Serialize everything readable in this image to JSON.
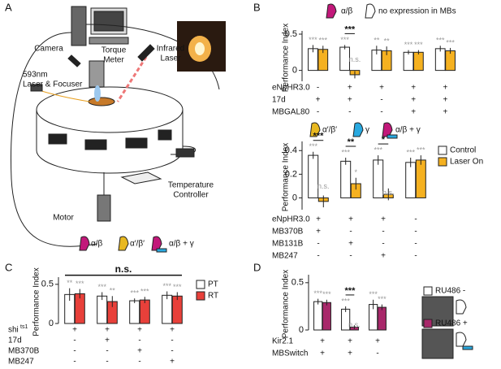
{
  "panels": [
    "A",
    "B",
    "C",
    "D"
  ],
  "diagram": {
    "labels": [
      {
        "lines": [
          "Camera"
        ]
      },
      {
        "lines": [
          "Torque",
          "Meter"
        ]
      },
      {
        "lines": [
          "Infrared",
          "Laser"
        ]
      },
      {
        "lines": [
          "593nm",
          "Laser & Focuser"
        ]
      },
      {
        "lines": [
          "Motor"
        ]
      },
      {
        "lines": [
          "Temperature",
          "Controller"
        ]
      }
    ]
  },
  "chart_data": [
    {
      "type": "bar",
      "ylabel": "Performance Index",
      "ylim": [
        -0.15,
        0.5
      ],
      "yticks": [
        0,
        0.5
      ],
      "series": [
        {
          "color": "#ffffff",
          "values": [
            0.3,
            0.32,
            0.28,
            0.25,
            0.3
          ],
          "errors": [
            0.05,
            0.03,
            0.06,
            0.03,
            0.04
          ],
          "stars": [
            "***",
            "***",
            "**",
            "***",
            "***"
          ]
        },
        {
          "color": "#f5b120",
          "values": [
            0.29,
            -0.06,
            0.27,
            0.25,
            0.27
          ],
          "errors": [
            0.05,
            0.05,
            0.06,
            0.03,
            0.04
          ],
          "stars": [
            "***",
            "n.s.",
            "**",
            "***",
            "***"
          ]
        }
      ],
      "comparisons": [
        {
          "group": 1,
          "label": "***"
        }
      ],
      "conditions": [
        {
          "label": "eNpHR3.0",
          "marks": [
            "-",
            "+",
            "+",
            "+",
            "+"
          ]
        },
        {
          "label": "17d",
          "marks": [
            "+",
            "+",
            "-",
            "+",
            "+"
          ]
        },
        {
          "label": "MBGAL80",
          "marks": [
            "-",
            "-",
            "-",
            "+",
            "+"
          ]
        }
      ],
      "icons": [
        "α/β",
        "no expression in MBs"
      ]
    },
    {
      "type": "bar",
      "ylabel": "Performance Index",
      "ylim": [
        -0.1,
        0.45
      ],
      "yticks": [
        0,
        0.2,
        0.4
      ],
      "series": [
        {
          "name": "Control",
          "color": "#ffffff",
          "values": [
            0.36,
            0.31,
            0.32,
            0.3
          ],
          "errors": [
            0.03,
            0.03,
            0.04,
            0.04
          ],
          "stars": [
            "***",
            "***",
            "***",
            "***"
          ]
        },
        {
          "name": "Laser On",
          "color": "#f5b120",
          "values": [
            -0.03,
            0.12,
            0.03,
            0.32
          ],
          "errors": [
            0.05,
            0.05,
            0.05,
            0.04
          ],
          "stars": [
            "n.s.",
            "*",
            "n.s.",
            "***"
          ]
        }
      ],
      "comparisons": [
        {
          "group": 0,
          "label": "***"
        },
        {
          "group": 1,
          "label": "**"
        },
        {
          "group": 2,
          "label": "*"
        }
      ],
      "conditions": [
        {
          "label": "eNpHR3.0",
          "marks": [
            "+",
            "+",
            "+",
            "-"
          ]
        },
        {
          "label": "MB370B",
          "marks": [
            "+",
            "-",
            "-",
            "-"
          ]
        },
        {
          "label": "MB131B",
          "marks": [
            "-",
            "+",
            "-",
            "-"
          ]
        },
        {
          "label": "MB247",
          "marks": [
            "-",
            "-",
            "+",
            "-"
          ]
        }
      ],
      "icons": [
        "α′/β′",
        "γ",
        "α/β + γ"
      ]
    },
    {
      "type": "bar",
      "ylabel": "Performance Index",
      "ylim": [
        0,
        0.55
      ],
      "yticks": [
        0,
        0.5
      ],
      "series": [
        {
          "name": "PT",
          "color": "#ffffff",
          "values": [
            0.37,
            0.35,
            0.29,
            0.36
          ],
          "errors": [
            0.08,
            0.05,
            0.03,
            0.05
          ],
          "stars": [
            "**",
            "***",
            "***",
            "***"
          ]
        },
        {
          "name": "RT",
          "color": "#e8403a",
          "values": [
            0.38,
            0.28,
            0.3,
            0.35
          ],
          "errors": [
            0.06,
            0.07,
            0.04,
            0.05
          ],
          "stars": [
            "***",
            "**",
            "***",
            "***"
          ]
        }
      ],
      "bracket_label": "n.s.",
      "conditions": [
        {
          "label": "shi",
          "sup": "ts1",
          "marks": [
            "+",
            "+",
            "+",
            "+"
          ]
        },
        {
          "label": "17d",
          "marks": [
            "-",
            "+",
            "-",
            "-"
          ]
        },
        {
          "label": "MB370B",
          "marks": [
            "-",
            "-",
            "+",
            "-"
          ]
        },
        {
          "label": "MB247",
          "marks": [
            "-",
            "-",
            "-",
            "+"
          ]
        }
      ],
      "icons": [
        "α/β",
        "α′/β′",
        "α/β + γ"
      ]
    },
    {
      "type": "bar",
      "ylabel": "Performance Index",
      "ylim": [
        0,
        0.55
      ],
      "yticks": [
        0,
        0.5
      ],
      "series": [
        {
          "name": "RU486 -",
          "color": "#ffffff",
          "values": [
            0.3,
            0.22,
            0.27
          ],
          "errors": [
            0.03,
            0.03,
            0.05
          ],
          "stars": [
            "***",
            "***",
            "***"
          ]
        },
        {
          "name": "RU486 +",
          "color": "#a8286a",
          "values": [
            0.29,
            0.03,
            0.24
          ],
          "errors": [
            0.03,
            0.02,
            0.03
          ],
          "stars": [
            "***",
            "n.s.",
            "***"
          ]
        }
      ],
      "comparisons": [
        {
          "group": 1,
          "label": "***"
        }
      ],
      "conditions": [
        {
          "label": "Kir2.1",
          "marks": [
            "+",
            "+",
            "+"
          ]
        },
        {
          "label": "MBSwitch",
          "marks": [
            "+",
            "+",
            "-"
          ]
        }
      ]
    }
  ]
}
